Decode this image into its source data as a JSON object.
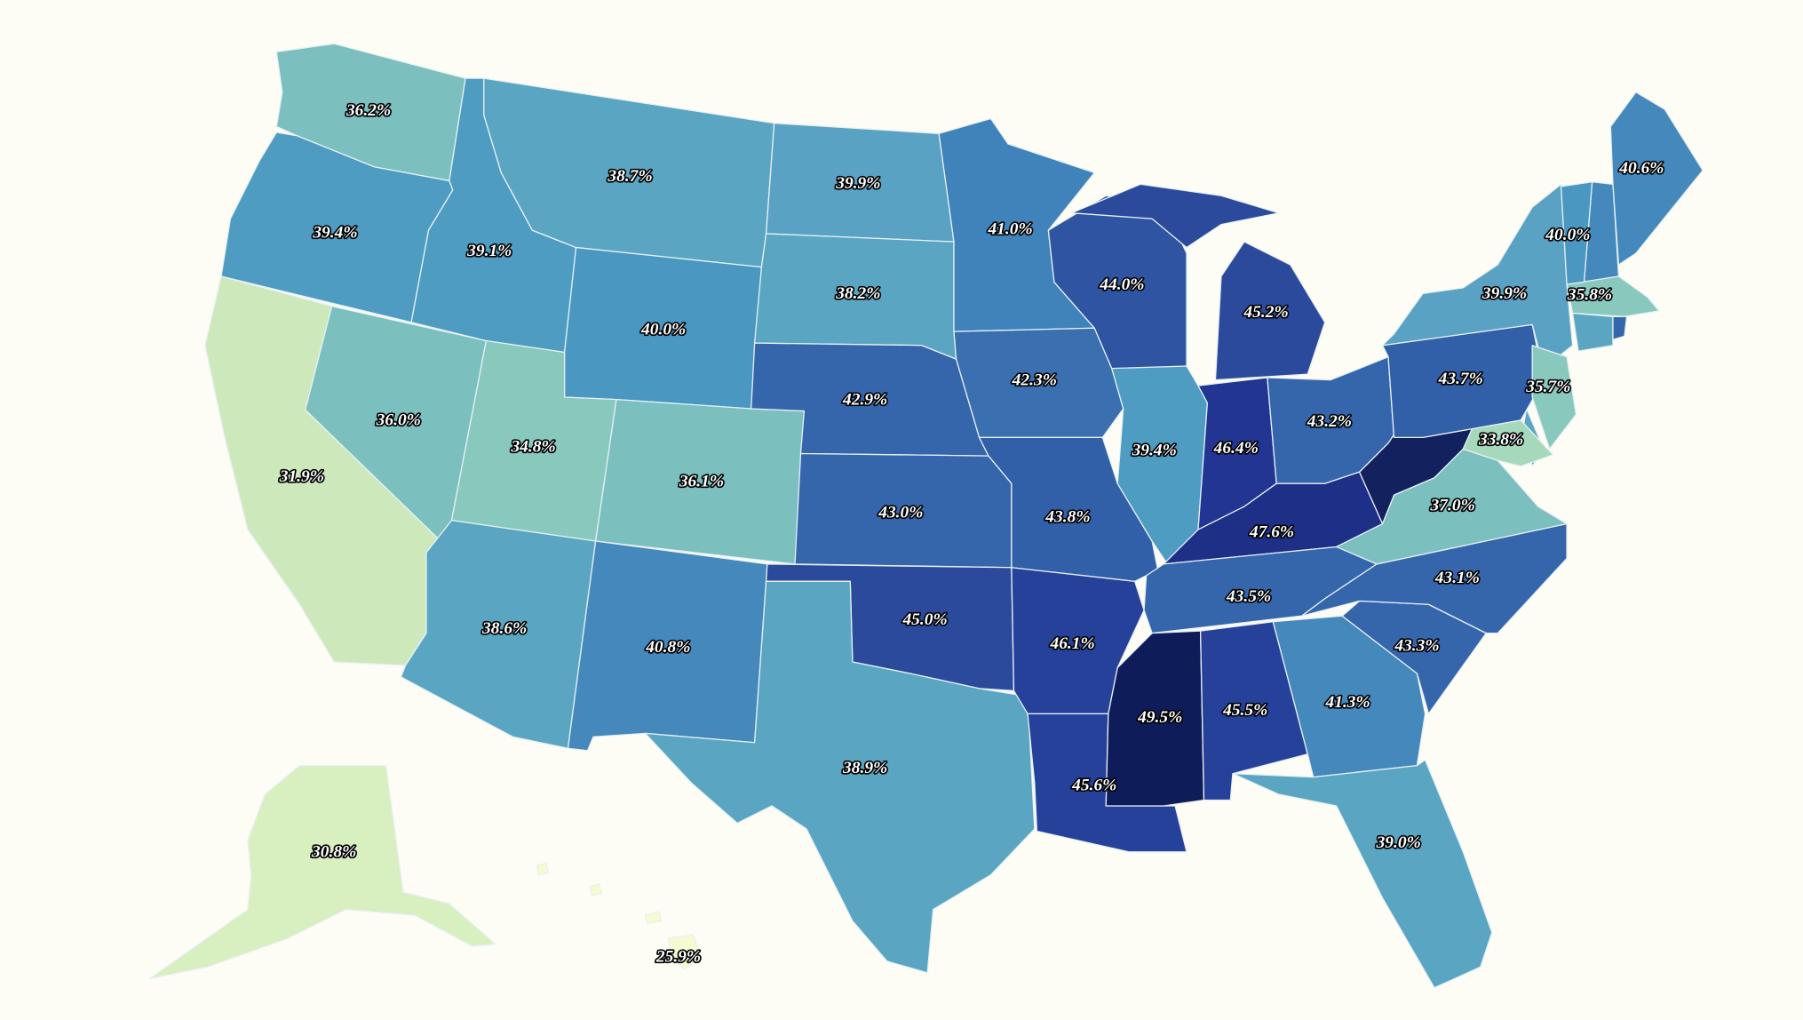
{
  "chart_data": {
    "type": "choropleth",
    "values": [
      36.2,
      39.4,
      31.9,
      36.0,
      39.1,
      38.7,
      40.0,
      34.8,
      36.1,
      38.6,
      40.8,
      39.9,
      38.2,
      42.9,
      43.0,
      45.0,
      38.9,
      41.0,
      42.3,
      43.8,
      46.1,
      45.6,
      44.0,
      39.4,
      45.2,
      46.4,
      43.2,
      47.6,
      43.5,
      49.5,
      45.5,
      41.3,
      39.0,
      43.3,
      43.1,
      37.0,
      null,
      33.8,
      43.7,
      39.9,
      35.7,
      35.8,
      40.0,
      40.6,
      30.8,
      25.9
    ],
    "value_labels": [
      "36.2%",
      "39.4%",
      "31.9%",
      "36.0%",
      "39.1%",
      "38.7%",
      "40.0%",
      "34.8%",
      "36.1%",
      "38.6%",
      "40.8%",
      "39.9%",
      "38.2%",
      "42.9%",
      "43.0%",
      "45.0%",
      "38.9%",
      "41.0%",
      "42.3%",
      "43.8%",
      "46.1%",
      "45.6%",
      "44.0%",
      "39.4%",
      "45.2%",
      "46.4%",
      "43.2%",
      "47.6%",
      "43.5%",
      "49.5%",
      "45.5%",
      "41.3%",
      "39.0%",
      "43.3%",
      "43.1%",
      "37.0%",
      null,
      "33.8%",
      "43.7%",
      "39.9%",
      "35.7%",
      "35.8%",
      "40.0%",
      "40.6%",
      "30.8%",
      "25.9%"
    ],
    "colors": [
      "#7bbfbf",
      "#4e9cc2",
      "#cde9bc",
      "#7bbfbf",
      "#4e9cc2",
      "#5aa6c2",
      "#4a97c2",
      "#88c8bd",
      "#7bbfbf",
      "#5aa6c2",
      "#4488bc",
      "#5aa2c4",
      "#5aa6c2",
      "#3566ac",
      "#3566ac",
      "#2b4a9c",
      "#5aa6c2",
      "#3f83ba",
      "#3a70b0",
      "#3160a8",
      "#26419a",
      "#26419a",
      "#2f55a2",
      "#4e9cc2",
      "#2b4a9c",
      "#233592",
      "#3566ac",
      "#1e2f88",
      "#3566ac",
      "#0f1c5a",
      "#26419a",
      "#4488bc",
      "#5aa6c2",
      "#3566ac",
      "#3566ac",
      "#7bbfbf",
      "#14215f",
      "#a6d8bc",
      "#3160a8",
      "#5aa2c4",
      "#88c8bd",
      "#88c8bd",
      "#4a97c2",
      "#4488bc",
      "#d8efc0",
      "#f6fbd0"
    ]
  }
}
